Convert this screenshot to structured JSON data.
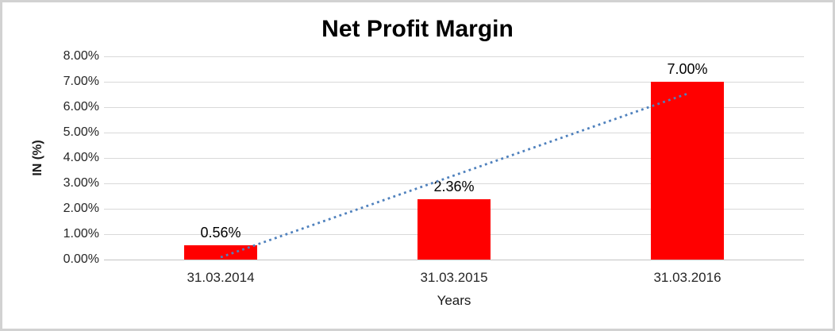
{
  "window": {
    "background_color": "#ffffff",
    "border_color": "#d2d2d2"
  },
  "chart_data": {
    "type": "bar",
    "title": "Net Profit Margin",
    "xlabel": "Years",
    "ylabel": "IN (%)",
    "categories": [
      "31.03.2014",
      "31.03.2015",
      "31.03.2016"
    ],
    "values": [
      0.56,
      2.36,
      7.0
    ],
    "data_labels": [
      "0.56%",
      "2.36%",
      "7.00%"
    ],
    "ylim": [
      0,
      8
    ],
    "ytick_step": 1,
    "ytick_labels": [
      "0.00%",
      "1.00%",
      "2.00%",
      "3.00%",
      "4.00%",
      "5.00%",
      "6.00%",
      "7.00%",
      "8.00%"
    ],
    "grid": true,
    "legend": false,
    "bar_color": "#ff0000",
    "gridline_color": "#d9d9d9",
    "axis_line_color": "#c3c3c3",
    "text_color": "#262626",
    "trendline": {
      "type": "linear",
      "style": "dotted",
      "color": "#4f81bd",
      "start_value": 0.09,
      "end_value": 6.53
    }
  }
}
